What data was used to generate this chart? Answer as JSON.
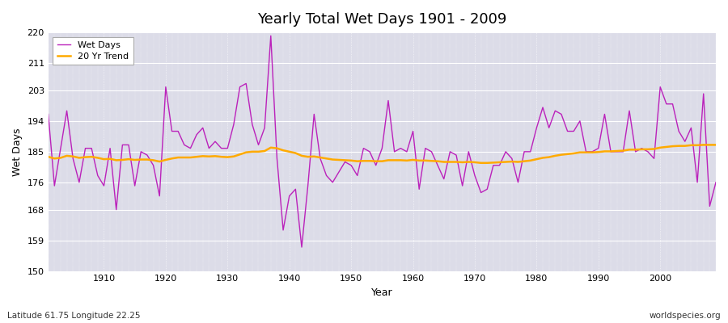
{
  "title": "Yearly Total Wet Days 1901 - 2009",
  "xlabel": "Year",
  "ylabel": "Wet Days",
  "subtitle_left": "Latitude 61.75 Longitude 22.25",
  "subtitle_right": "worldspecies.org",
  "ylim": [
    150,
    220
  ],
  "yticks": [
    150,
    159,
    168,
    176,
    185,
    194,
    203,
    211,
    220
  ],
  "bg_color": "#dcdce8",
  "line_color": "#bb22bb",
  "trend_color": "#ffaa00",
  "years": [
    1901,
    1902,
    1903,
    1904,
    1905,
    1906,
    1907,
    1908,
    1909,
    1910,
    1911,
    1912,
    1913,
    1914,
    1915,
    1916,
    1917,
    1918,
    1919,
    1920,
    1921,
    1922,
    1923,
    1924,
    1925,
    1926,
    1927,
    1928,
    1929,
    1930,
    1931,
    1932,
    1933,
    1934,
    1935,
    1936,
    1937,
    1938,
    1939,
    1940,
    1941,
    1942,
    1943,
    1944,
    1945,
    1946,
    1947,
    1948,
    1949,
    1950,
    1951,
    1952,
    1953,
    1954,
    1955,
    1956,
    1957,
    1958,
    1959,
    1960,
    1961,
    1962,
    1963,
    1964,
    1965,
    1966,
    1967,
    1968,
    1969,
    1970,
    1971,
    1972,
    1973,
    1974,
    1975,
    1976,
    1977,
    1978,
    1979,
    1980,
    1981,
    1982,
    1983,
    1984,
    1985,
    1986,
    1987,
    1988,
    1989,
    1990,
    1991,
    1992,
    1993,
    1994,
    1995,
    1996,
    1997,
    1998,
    1999,
    2000,
    2001,
    2002,
    2003,
    2004,
    2005,
    2006,
    2007,
    2008,
    2009
  ],
  "wet_days": [
    196,
    175,
    186,
    197,
    183,
    176,
    186,
    186,
    178,
    175,
    186,
    168,
    187,
    187,
    175,
    185,
    184,
    181,
    172,
    204,
    191,
    191,
    187,
    186,
    190,
    192,
    186,
    188,
    186,
    186,
    193,
    204,
    205,
    193,
    187,
    192,
    219,
    183,
    162,
    172,
    174,
    157,
    175,
    196,
    183,
    178,
    176,
    179,
    182,
    181,
    178,
    186,
    185,
    181,
    186,
    200,
    185,
    186,
    185,
    191,
    174,
    186,
    185,
    181,
    177,
    185,
    184,
    175,
    185,
    178,
    173,
    174,
    181,
    181,
    185,
    183,
    176,
    185,
    185,
    192,
    198,
    192,
    197,
    196,
    191,
    191,
    194,
    185,
    185,
    186,
    196,
    185,
    185,
    185,
    197,
    185,
    186,
    185,
    183,
    204,
    199,
    199,
    191,
    188,
    192,
    176,
    202,
    169,
    176
  ],
  "trend": [
    183.5,
    183.0,
    183.2,
    183.8,
    183.6,
    183.2,
    183.4,
    183.5,
    183.2,
    182.8,
    182.9,
    182.5,
    182.6,
    182.8,
    182.6,
    182.7,
    182.7,
    182.5,
    182.1,
    182.6,
    183.0,
    183.3,
    183.3,
    183.3,
    183.5,
    183.7,
    183.6,
    183.7,
    183.5,
    183.4,
    183.6,
    184.2,
    184.8,
    185.0,
    185.0,
    185.2,
    186.2,
    186.0,
    185.4,
    185.0,
    184.6,
    183.8,
    183.5,
    183.6,
    183.3,
    183.0,
    182.7,
    182.6,
    182.5,
    182.4,
    182.2,
    182.3,
    182.3,
    182.2,
    182.2,
    182.5,
    182.5,
    182.5,
    182.4,
    182.6,
    182.4,
    182.4,
    182.3,
    182.2,
    182.0,
    182.0,
    182.0,
    181.9,
    182.0,
    181.9,
    181.7,
    181.7,
    181.8,
    181.9,
    182.0,
    182.1,
    182.0,
    182.2,
    182.4,
    182.8,
    183.2,
    183.4,
    183.8,
    184.1,
    184.3,
    184.5,
    184.8,
    184.8,
    184.8,
    184.9,
    185.1,
    185.1,
    185.2,
    185.3,
    185.6,
    185.6,
    185.7,
    185.7,
    185.8,
    186.2,
    186.4,
    186.6,
    186.7,
    186.7,
    186.9,
    186.9,
    187.0,
    187.0,
    187.0
  ]
}
